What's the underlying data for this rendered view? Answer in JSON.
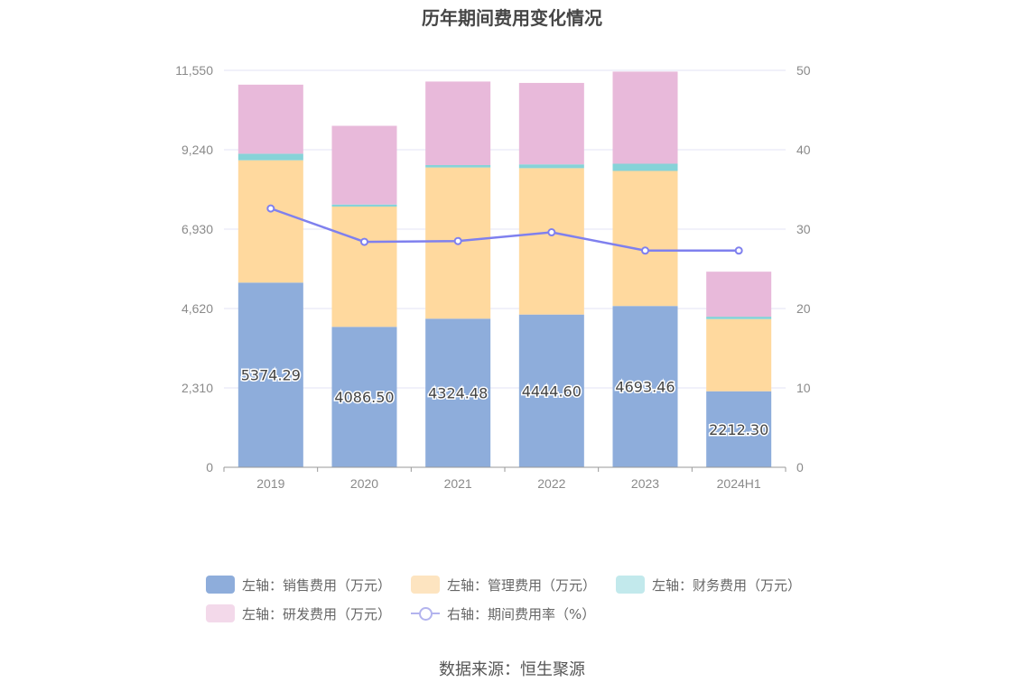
{
  "title": "历年期间费用变化情况",
  "source": "数据来源：恒生聚源",
  "legend": [
    {
      "label": "左轴：销售费用（万元）",
      "color": "#8eaddb",
      "kind": "box"
    },
    {
      "label": "左轴：管理费用（万元）",
      "color": "#fde4c0",
      "kind": "box"
    },
    {
      "label": "左轴：财务费用（万元）",
      "color": "#c2e9ec",
      "kind": "box"
    },
    {
      "label": "左轴：研发费用（万元）",
      "color": "#f3d9ea",
      "kind": "box"
    },
    {
      "label": "右轴：期间费用率（%）",
      "color": "#b3b4ee",
      "kind": "line"
    }
  ],
  "chart_data": {
    "type": "bar",
    "stacked": true,
    "categories": [
      "2019",
      "2020",
      "2021",
      "2022",
      "2023",
      "2024H1"
    ],
    "series": [
      {
        "name": "左轴：销售费用（万元）",
        "axis": "left",
        "color": "#8eaddb",
        "values": [
          5374.29,
          4086.5,
          4324.48,
          4444.6,
          4693.46,
          2212.3
        ],
        "labels_shown": true
      },
      {
        "name": "左轴：管理费用（万元）",
        "axis": "left",
        "color": "#ffd99e",
        "values": [
          3560,
          3500,
          4400,
          4260,
          3930,
          2100
        ]
      },
      {
        "name": "左轴：财务费用（万元）",
        "axis": "left",
        "color": "#86d3d8",
        "values": [
          190,
          60,
          70,
          110,
          210,
          70
        ]
      },
      {
        "name": "左轴：研发费用（万元）",
        "axis": "left",
        "color": "#e8b9da",
        "values": [
          2010,
          2290,
          2430,
          2370,
          2680,
          1310
        ]
      },
      {
        "name": "右轴：期间费用率（%）",
        "axis": "right",
        "type": "line",
        "color": "#7f80ee",
        "values": [
          32.6,
          28.4,
          28.5,
          29.6,
          27.3,
          27.3
        ]
      }
    ],
    "left_axis": {
      "ticks": [
        "0",
        "2,310",
        "4,620",
        "6,930",
        "9,240",
        "11,550"
      ],
      "range": [
        0,
        11550
      ]
    },
    "right_axis": {
      "ticks": [
        "0",
        "10",
        "20",
        "30",
        "40",
        "50"
      ],
      "range": [
        0,
        50
      ]
    },
    "grid": true,
    "legend_position": "bottom"
  }
}
